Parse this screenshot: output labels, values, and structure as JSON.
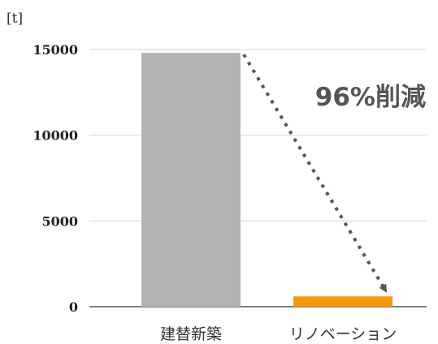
{
  "chart_data": {
    "type": "bar",
    "unit": "[t]",
    "categories": [
      "建替新築",
      "リノベーション"
    ],
    "values": [
      14800,
      600
    ],
    "ylim": [
      0,
      15000
    ],
    "yticks": [
      0,
      5000,
      10000,
      15000
    ],
    "colors": [
      "#b3b3b3",
      "#f59a0c"
    ],
    "annotation": "96%削減",
    "grid": true
  }
}
